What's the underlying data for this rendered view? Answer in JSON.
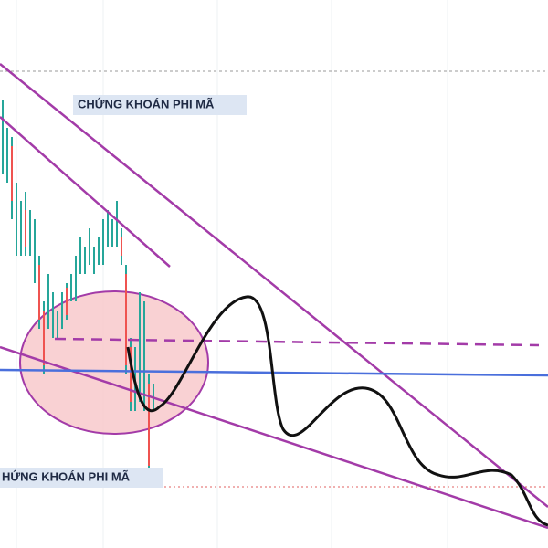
{
  "watermarks": [
    "CHỨNG KHOÁN PHI MÃ",
    "HỨNG KHOÁN PHI MÃ"
  ]
}
